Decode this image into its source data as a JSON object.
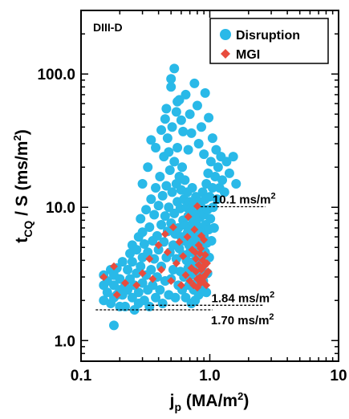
{
  "chart_data": {
    "type": "scatter",
    "inset_label": "DIII-D",
    "x_axis": {
      "scale": "log",
      "range": [
        0.1,
        10
      ],
      "ticks": [
        0.1,
        1.0,
        10
      ],
      "tick_labels": [
        "0.1",
        "1.0",
        "10"
      ],
      "title_main": "j",
      "title_sub": "p",
      "title_rest": " (MA/m",
      "title_sup": "2",
      "title_end": ")"
    },
    "y_axis": {
      "scale": "log",
      "range": [
        0.7,
        300
      ],
      "ticks": [
        1.0,
        10.0,
        100.0
      ],
      "tick_labels": [
        "1.0",
        "10.0",
        "100.0"
      ],
      "title_main": "t",
      "title_sub": "CQ",
      "title_rest": " / S (ms/m",
      "title_sup": "2",
      "title_end": ")"
    },
    "grid": false,
    "legend_position": "top-right",
    "series": [
      {
        "name": "Disruption",
        "color": "#29b9e8",
        "marker": "circle",
        "points": [
          [
            0.15,
            2.0
          ],
          [
            0.15,
            2.6
          ],
          [
            0.15,
            3.1
          ],
          [
            0.16,
            2.3
          ],
          [
            0.16,
            2.8
          ],
          [
            0.17,
            1.9
          ],
          [
            0.17,
            3.4
          ],
          [
            0.18,
            2.1
          ],
          [
            0.18,
            2.6
          ],
          [
            0.18,
            3.1
          ],
          [
            0.18,
            1.3
          ],
          [
            0.19,
            2.2
          ],
          [
            0.19,
            3.5
          ],
          [
            0.2,
            1.8
          ],
          [
            0.2,
            2.4
          ],
          [
            0.2,
            2.9
          ],
          [
            0.21,
            3.9
          ],
          [
            0.21,
            2.2
          ],
          [
            0.22,
            2.6
          ],
          [
            0.22,
            1.8
          ],
          [
            0.23,
            3.4
          ],
          [
            0.23,
            2.4
          ],
          [
            0.24,
            4.5
          ],
          [
            0.24,
            2.9
          ],
          [
            0.25,
            2.1
          ],
          [
            0.25,
            3.9
          ],
          [
            0.25,
            5.2
          ],
          [
            0.26,
            2.6
          ],
          [
            0.26,
            1.7
          ],
          [
            0.27,
            4.8
          ],
          [
            0.27,
            3.2
          ],
          [
            0.28,
            2.3
          ],
          [
            0.28,
            6.0
          ],
          [
            0.28,
            1.9
          ],
          [
            0.29,
            3.6
          ],
          [
            0.29,
            8.2
          ],
          [
            0.3,
            2.7
          ],
          [
            0.3,
            4.2
          ],
          [
            0.3,
            6.5
          ],
          [
            0.31,
            2.0
          ],
          [
            0.31,
            5.3
          ],
          [
            0.32,
            3.1
          ],
          [
            0.32,
            9.6
          ],
          [
            0.33,
            4.6
          ],
          [
            0.33,
            2.4
          ],
          [
            0.34,
            7.1
          ],
          [
            0.34,
            1.8
          ],
          [
            0.35,
            3.4
          ],
          [
            0.35,
            11.5
          ],
          [
            0.36,
            5.6
          ],
          [
            0.36,
            2.6
          ],
          [
            0.37,
            8.8
          ],
          [
            0.37,
            4.1
          ],
          [
            0.38,
            2.1
          ],
          [
            0.38,
            14.0
          ],
          [
            0.39,
            6.1
          ],
          [
            0.39,
            3.0
          ],
          [
            0.4,
            10.3
          ],
          [
            0.4,
            4.8
          ],
          [
            0.41,
            2.4
          ],
          [
            0.41,
            17.0
          ],
          [
            0.42,
            7.4
          ],
          [
            0.42,
            3.6
          ],
          [
            0.43,
            12.2
          ],
          [
            0.43,
            1.9
          ],
          [
            0.44,
            5.5
          ],
          [
            0.44,
            24.0
          ],
          [
            0.45,
            8.6
          ],
          [
            0.45,
            2.8
          ],
          [
            0.46,
            4.2
          ],
          [
            0.46,
            14.5
          ],
          [
            0.47,
            6.6
          ],
          [
            0.47,
            33.0
          ],
          [
            0.48,
            2.2
          ],
          [
            0.48,
            10.0
          ],
          [
            0.49,
            4.6
          ],
          [
            0.49,
            19.0
          ],
          [
            0.5,
            7.6
          ],
          [
            0.5,
            2.9
          ],
          [
            0.51,
            13.0
          ],
          [
            0.51,
            40.0
          ],
          [
            0.52,
            5.2
          ],
          [
            0.52,
            3.4
          ],
          [
            0.53,
            9.0
          ],
          [
            0.53,
            22.0
          ],
          [
            0.54,
            6.3
          ],
          [
            0.54,
            2.1
          ],
          [
            0.55,
            15.0
          ],
          [
            0.55,
            4.1
          ],
          [
            0.56,
            11.0
          ],
          [
            0.56,
            28.0
          ],
          [
            0.57,
            7.0
          ],
          [
            0.57,
            2.6
          ],
          [
            0.58,
            4.9
          ],
          [
            0.58,
            17.0
          ],
          [
            0.59,
            9.8
          ],
          [
            0.59,
            3.3
          ],
          [
            0.6,
            13.5
          ],
          [
            0.6,
            6.0
          ],
          [
            0.61,
            2.4
          ],
          [
            0.61,
            20.0
          ],
          [
            0.62,
            8.0
          ],
          [
            0.62,
            4.4
          ],
          [
            0.63,
            11.5
          ],
          [
            0.63,
            3.0
          ],
          [
            0.64,
            5.6
          ],
          [
            0.64,
            16.0
          ],
          [
            0.65,
            7.3
          ],
          [
            0.65,
            2.1
          ],
          [
            0.66,
            10.0
          ],
          [
            0.66,
            4.0
          ],
          [
            0.67,
            6.4
          ],
          [
            0.67,
            13.0
          ],
          [
            0.68,
            3.5
          ],
          [
            0.68,
            8.6
          ],
          [
            0.69,
            5.2
          ],
          [
            0.69,
            2.6
          ],
          [
            0.7,
            11.0
          ],
          [
            0.7,
            4.6
          ],
          [
            0.71,
            7.0
          ],
          [
            0.71,
            3.1
          ],
          [
            0.72,
            9.2
          ],
          [
            0.72,
            1.9
          ],
          [
            0.73,
            5.8
          ],
          [
            0.73,
            14.0
          ],
          [
            0.74,
            3.9
          ],
          [
            0.74,
            7.8
          ],
          [
            0.75,
            2.4
          ],
          [
            0.75,
            10.5
          ],
          [
            0.76,
            5.0
          ],
          [
            0.76,
            3.3
          ],
          [
            0.77,
            8.0
          ],
          [
            0.77,
            2.0
          ],
          [
            0.78,
            6.2
          ],
          [
            0.78,
            12.0
          ],
          [
            0.79,
            4.3
          ],
          [
            0.79,
            2.7
          ],
          [
            0.8,
            9.0
          ],
          [
            0.8,
            5.4
          ],
          [
            0.81,
            3.6
          ],
          [
            0.81,
            7.2
          ],
          [
            0.82,
            2.2
          ],
          [
            0.82,
            11.0
          ],
          [
            0.83,
            4.8
          ],
          [
            0.83,
            6.6
          ],
          [
            0.84,
            3.0
          ],
          [
            0.84,
            8.4
          ],
          [
            0.85,
            5.8
          ],
          [
            0.85,
            2.5
          ],
          [
            0.86,
            10.0
          ],
          [
            0.86,
            4.1
          ],
          [
            0.87,
            7.0
          ],
          [
            0.87,
            3.4
          ],
          [
            0.88,
            13.0
          ],
          [
            0.88,
            5.0
          ],
          [
            0.89,
            2.8
          ],
          [
            0.9,
            8.8
          ],
          [
            0.9,
            6.1
          ],
          [
            0.91,
            3.8
          ],
          [
            0.92,
            11.5
          ],
          [
            0.92,
            4.6
          ],
          [
            0.93,
            7.4
          ],
          [
            0.94,
            2.3
          ],
          [
            0.94,
            15.0
          ],
          [
            0.95,
            5.4
          ],
          [
            0.96,
            9.6
          ],
          [
            0.96,
            3.2
          ],
          [
            0.97,
            18.0
          ],
          [
            0.98,
            6.8
          ],
          [
            0.99,
            4.2
          ],
          [
            1.0,
            12.0
          ],
          [
            1.01,
            8.2
          ],
          [
            1.02,
            22.0
          ],
          [
            1.03,
            5.6
          ],
          [
            1.05,
            14.0
          ],
          [
            1.06,
            10.0
          ],
          [
            1.08,
            7.0
          ],
          [
            1.1,
            17.0
          ],
          [
            1.12,
            27.0
          ],
          [
            1.14,
            11.5
          ],
          [
            1.16,
            20.0
          ],
          [
            1.19,
            14.0
          ],
          [
            1.22,
            24.0
          ],
          [
            1.25,
            16.0
          ],
          [
            1.3,
            13.0
          ],
          [
            1.35,
            22.0
          ],
          [
            1.42,
            18.0
          ],
          [
            1.52,
            24.0
          ],
          [
            1.6,
            15.0
          ],
          [
            0.42,
            38.0
          ],
          [
            0.46,
            55.0
          ],
          [
            0.5,
            80.0
          ],
          [
            0.53,
            110.0
          ],
          [
            0.56,
            62.0
          ],
          [
            0.6,
            45.0
          ],
          [
            0.65,
            70.0
          ],
          [
            0.7,
            50.0
          ],
          [
            0.76,
            85.0
          ],
          [
            0.8,
            58.0
          ],
          [
            0.86,
            40.0
          ],
          [
            0.92,
            72.0
          ],
          [
            0.98,
            47.0
          ],
          [
            1.05,
            33.0
          ],
          [
            0.5,
            92.0
          ],
          [
            0.55,
            52.0
          ],
          [
            0.62,
            37.0
          ],
          [
            0.38,
            28.0
          ],
          [
            0.33,
            20.0
          ],
          [
            0.3,
            15.0
          ],
          [
            0.82,
            30.0
          ],
          [
            0.9,
            25.0
          ],
          [
            0.72,
            36.0
          ],
          [
            0.58,
            64.0
          ],
          [
            0.45,
            46.0
          ],
          [
            0.68,
            27.0
          ],
          [
            0.35,
            32.0
          ],
          [
            0.48,
            26.0
          ]
        ]
      },
      {
        "name": "MGI",
        "color": "#e84c3d",
        "marker": "diamond",
        "points": [
          [
            0.15,
            3.0
          ],
          [
            0.18,
            3.6
          ],
          [
            0.19,
            2.2
          ],
          [
            0.22,
            2.7
          ],
          [
            0.27,
            2.6
          ],
          [
            0.3,
            3.2
          ],
          [
            0.34,
            4.1
          ],
          [
            0.36,
            2.9
          ],
          [
            0.4,
            5.2
          ],
          [
            0.42,
            3.4
          ],
          [
            0.45,
            6.3
          ],
          [
            0.47,
            4.6
          ],
          [
            0.5,
            2.8
          ],
          [
            0.52,
            7.1
          ],
          [
            0.55,
            3.8
          ],
          [
            0.58,
            5.5
          ],
          [
            0.6,
            2.6
          ],
          [
            0.62,
            4.3
          ],
          [
            0.65,
            3.1
          ],
          [
            0.67,
            6.0
          ],
          [
            0.68,
            8.5
          ],
          [
            0.7,
            2.8
          ],
          [
            0.72,
            3.5
          ],
          [
            0.73,
            4.8
          ],
          [
            0.75,
            2.6
          ],
          [
            0.76,
            6.8
          ],
          [
            0.78,
            3.3
          ],
          [
            0.78,
            4.1
          ],
          [
            0.8,
            10.2
          ],
          [
            0.8,
            2.9
          ],
          [
            0.82,
            3.7
          ],
          [
            0.82,
            5.2
          ],
          [
            0.84,
            3.0
          ],
          [
            0.84,
            4.5
          ],
          [
            0.85,
            2.7
          ],
          [
            0.86,
            6.1
          ],
          [
            0.86,
            3.4
          ],
          [
            0.88,
            4.0
          ],
          [
            0.88,
            2.8
          ],
          [
            0.9,
            3.6
          ],
          [
            0.9,
            5.7
          ],
          [
            0.92,
            3.1
          ],
          [
            0.92,
            4.4
          ],
          [
            0.94,
            2.6
          ],
          [
            0.95,
            3.8
          ],
          [
            0.97,
            3.3
          ],
          [
            0.8,
            2.5
          ],
          [
            0.77,
            4.6
          ],
          [
            0.85,
            4.9
          ],
          [
            0.9,
            3.0
          ]
        ]
      }
    ],
    "annotations": [
      {
        "text_main": "10.1 ms/m",
        "text_sup": "2",
        "y": 10.1,
        "line_x": [
          0.85,
          2.7
        ],
        "label_x": 1.05
      },
      {
        "text_main": "1.84 ms/m",
        "text_sup": "2",
        "y": 1.84,
        "line_x": [
          0.33,
          2.6
        ],
        "label_x": 1.03
      },
      {
        "text_main": "1.70 ms/m",
        "text_sup": "2",
        "y": 1.7,
        "line_x": [
          0.13,
          1.05
        ],
        "label_x": 1.02
      }
    ]
  }
}
